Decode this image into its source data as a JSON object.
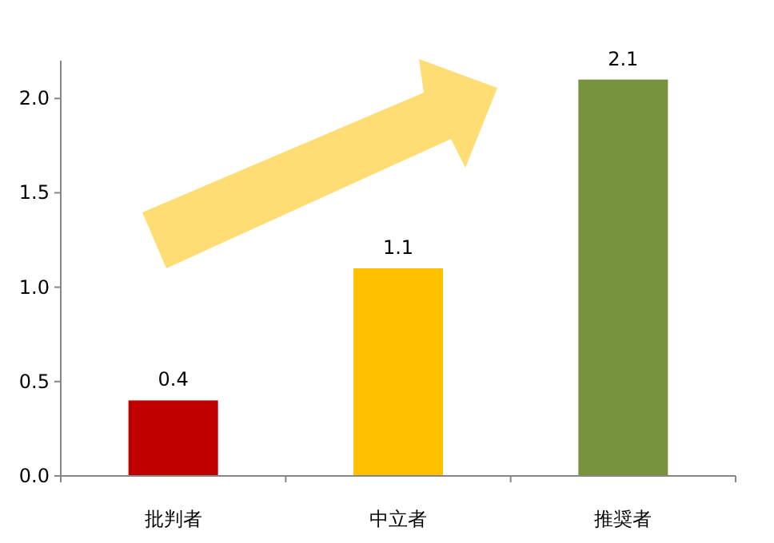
{
  "chart_data": {
    "type": "bar",
    "categories": [
      "批判者",
      "中立者",
      "推奨者"
    ],
    "values": [
      0.4,
      1.1,
      2.1
    ],
    "colors": [
      "#c00000",
      "#ffc000",
      "#77933c"
    ],
    "ylim": [
      0,
      2.2
    ],
    "yticks": [
      {
        "value": 0,
        "label": "0.0"
      },
      {
        "value": 0.5,
        "label": "0.5"
      },
      {
        "value": 1,
        "label": "1.0"
      },
      {
        "value": 1.5,
        "label": "1.5"
      },
      {
        "value": 2,
        "label": "2.0"
      }
    ],
    "data_labels": true
  }
}
